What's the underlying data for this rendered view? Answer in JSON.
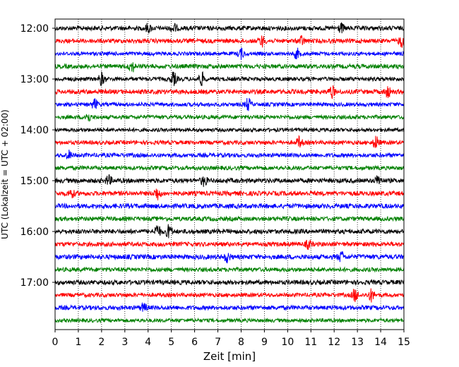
{
  "chart_data": {
    "type": "line",
    "title": "",
    "xlabel": "Zeit  [min]",
    "ylabel": "UTC (Lokalzeit = UTC + 02:00)",
    "xlim": [
      0,
      15
    ],
    "x_ticks": [
      "0",
      "1",
      "2",
      "3",
      "4",
      "5",
      "6",
      "7",
      "8",
      "9",
      "10",
      "11",
      "12",
      "13",
      "14",
      "15"
    ],
    "y_ticks": [
      "12:00",
      "13:00",
      "14:00",
      "15:00",
      "16:00",
      "17:00"
    ],
    "traces_start": "12:00",
    "trace_interval_min": 15,
    "trace_count": 24,
    "vertical_grid": true,
    "grid_style": "dotted",
    "colors": [
      "#000000",
      "#ff0000",
      "#0000ff",
      "#008000"
    ],
    "events": [
      {
        "trace": 0,
        "x": 4.0,
        "amp": 1.2
      },
      {
        "trace": 0,
        "x": 5.1,
        "amp": 1.3
      },
      {
        "trace": 0,
        "x": 12.3,
        "amp": 1.3
      },
      {
        "trace": 1,
        "x": 8.9,
        "amp": 1.5
      },
      {
        "trace": 1,
        "x": 10.6,
        "amp": 1.3
      },
      {
        "trace": 1,
        "x": 14.9,
        "amp": 1.6
      },
      {
        "trace": 2,
        "x": 8.0,
        "amp": 1.5
      },
      {
        "trace": 2,
        "x": 10.4,
        "amp": 1.4
      },
      {
        "trace": 3,
        "x": 3.3,
        "amp": 1.6
      },
      {
        "trace": 4,
        "x": 2.0,
        "amp": 1.8
      },
      {
        "trace": 4,
        "x": 5.1,
        "amp": 1.9
      },
      {
        "trace": 4,
        "x": 6.3,
        "amp": 1.9
      },
      {
        "trace": 5,
        "x": 11.9,
        "amp": 1.7
      },
      {
        "trace": 5,
        "x": 14.3,
        "amp": 1.6
      },
      {
        "trace": 6,
        "x": 1.7,
        "amp": 1.5
      },
      {
        "trace": 6,
        "x": 8.3,
        "amp": 1.8
      },
      {
        "trace": 7,
        "x": 1.4,
        "amp": 1.5
      },
      {
        "trace": 9,
        "x": 10.5,
        "amp": 1.6
      },
      {
        "trace": 9,
        "x": 13.8,
        "amp": 1.9
      },
      {
        "trace": 10,
        "x": 0.6,
        "amp": 1.2
      },
      {
        "trace": 12,
        "x": 2.3,
        "amp": 1.4
      },
      {
        "trace": 12,
        "x": 6.4,
        "amp": 1.5
      },
      {
        "trace": 12,
        "x": 13.9,
        "amp": 1.5
      },
      {
        "trace": 13,
        "x": 4.4,
        "amp": 1.8
      },
      {
        "trace": 13,
        "x": 0.7,
        "amp": 1.2
      },
      {
        "trace": 16,
        "x": 4.4,
        "amp": 2.0
      },
      {
        "trace": 16,
        "x": 4.9,
        "amp": 2.0
      },
      {
        "trace": 17,
        "x": 10.9,
        "amp": 1.2
      },
      {
        "trace": 18,
        "x": 7.4,
        "amp": 1.4
      },
      {
        "trace": 18,
        "x": 12.3,
        "amp": 1.4
      },
      {
        "trace": 21,
        "x": 12.9,
        "amp": 1.9
      },
      {
        "trace": 21,
        "x": 13.6,
        "amp": 1.8
      },
      {
        "trace": 22,
        "x": 3.8,
        "amp": 1.2
      }
    ]
  }
}
